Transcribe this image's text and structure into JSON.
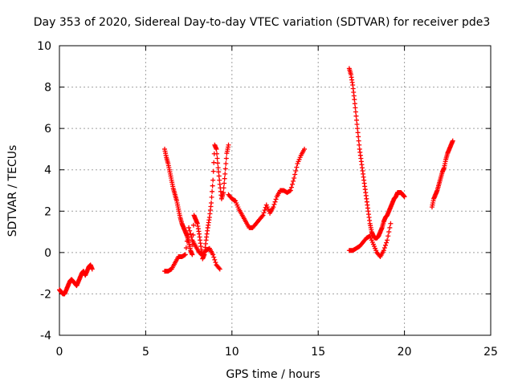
{
  "chart_data": {
    "type": "scatter",
    "title": "Day 353 of 2020, Sidereal Day-to-day VTEC variation (SDTVAR) for receiver pde3",
    "xlabel": "GPS time / hours",
    "ylabel": "SDTVAR / TECUs",
    "xlim": [
      0,
      25
    ],
    "ylim": [
      -4,
      10
    ],
    "xticks": [
      "0",
      "5",
      "10",
      "15",
      "20",
      "25"
    ],
    "yticks": [
      "-4",
      "-2",
      "0",
      "2",
      "4",
      "6",
      "8",
      "10"
    ],
    "grid": true,
    "marker": "plus",
    "color": "#ff0000",
    "series": [
      {
        "x": [
          0.0,
          0.1,
          0.2,
          0.3,
          0.4,
          0.5,
          0.6,
          0.7,
          0.8,
          0.9,
          1.0,
          1.1,
          1.2,
          1.3,
          1.4,
          1.5,
          1.6,
          1.7,
          1.8,
          1.9
        ],
        "y": [
          -1.8,
          -1.9,
          -2.0,
          -2.0,
          -1.8,
          -1.6,
          -1.4,
          -1.3,
          -1.4,
          -1.5,
          -1.6,
          -1.4,
          -1.2,
          -1.0,
          -0.9,
          -1.1,
          -0.9,
          -0.7,
          -0.6,
          -0.8
        ]
      },
      {
        "x": [
          6.1,
          6.2,
          6.3,
          6.4,
          6.5,
          6.6,
          6.7,
          6.8,
          6.9,
          7.0,
          7.1,
          7.2,
          7.3,
          7.4,
          7.5,
          7.6,
          7.7,
          7.8,
          7.9,
          8.0,
          8.1,
          8.2,
          8.3,
          8.4,
          8.5,
          8.6,
          8.7,
          8.8,
          8.9,
          9.0,
          9.1,
          9.2,
          9.3,
          9.4,
          9.5,
          9.6,
          9.7,
          9.8
        ],
        "y": [
          5.0,
          4.6,
          4.3,
          3.9,
          3.5,
          3.1,
          2.8,
          2.5,
          2.1,
          1.7,
          1.4,
          1.2,
          1.0,
          0.8,
          0.5,
          0.1,
          -0.1,
          1.8,
          1.6,
          1.4,
          0.9,
          0.3,
          -0.3,
          -0.1,
          0.6,
          1.2,
          1.7,
          2.4,
          3.5,
          5.2,
          5.0,
          4.1,
          3.3,
          2.6,
          2.9,
          3.8,
          4.8,
          5.2
        ]
      },
      {
        "x": [
          6.1,
          6.3,
          6.5,
          6.7,
          6.9,
          7.1,
          7.3,
          7.5,
          7.7,
          7.9,
          8.1,
          8.3,
          8.5,
          8.7,
          8.9,
          9.1,
          9.3
        ],
        "y": [
          -0.9,
          -0.9,
          -0.8,
          -0.5,
          -0.2,
          -0.2,
          -0.1,
          1.2,
          0.6,
          0.3,
          0.0,
          -0.1,
          0.1,
          0.2,
          -0.1,
          -0.6,
          -0.8
        ]
      },
      {
        "x": [
          9.8,
          10.0,
          10.2,
          10.4,
          10.6,
          10.8,
          11.0,
          11.2,
          11.4,
          11.6,
          11.8,
          12.0,
          12.2,
          12.4,
          12.6,
          12.8,
          13.0,
          13.2,
          13.4,
          13.6,
          13.8,
          14.0,
          14.2
        ],
        "y": [
          2.8,
          2.6,
          2.5,
          2.1,
          1.8,
          1.5,
          1.2,
          1.2,
          1.4,
          1.6,
          1.8,
          2.3,
          1.9,
          2.2,
          2.7,
          3.0,
          3.0,
          2.9,
          3.0,
          3.6,
          4.3,
          4.7,
          5.0
        ]
      },
      {
        "x": [
          16.8,
          16.9,
          17.0,
          17.1,
          17.2,
          17.3,
          17.4,
          17.5,
          17.6,
          17.7,
          17.8,
          17.9,
          18.0,
          18.1,
          18.2,
          18.3,
          18.4,
          18.5,
          18.6,
          18.7,
          18.8,
          18.9,
          19.0,
          19.1,
          19.2,
          19.3,
          19.4,
          19.5,
          19.6,
          19.7,
          19.8,
          19.9,
          20.0
        ],
        "y": [
          8.9,
          8.6,
          8.1,
          7.4,
          6.6,
          5.8,
          5.0,
          4.4,
          3.8,
          3.2,
          2.6,
          2.0,
          1.4,
          1.0,
          0.8,
          0.7,
          0.7,
          0.8,
          1.0,
          1.2,
          1.5,
          1.7,
          1.8,
          2.0,
          2.2,
          2.4,
          2.6,
          2.7,
          2.9,
          2.9,
          2.9,
          2.8,
          2.7
        ]
      },
      {
        "x": [
          16.8,
          17.0,
          17.2,
          17.4,
          17.6,
          17.8,
          18.0,
          18.2,
          18.4,
          18.6,
          18.8,
          19.0,
          19.2
        ],
        "y": [
          0.1,
          0.1,
          0.2,
          0.3,
          0.5,
          0.7,
          0.8,
          0.4,
          0.0,
          -0.2,
          0.1,
          0.6,
          1.4
        ]
      },
      {
        "x": [
          21.6,
          21.7,
          21.8,
          21.9,
          22.0,
          22.1,
          22.2,
          22.3,
          22.4,
          22.5,
          22.6,
          22.7,
          22.8
        ],
        "y": [
          2.2,
          2.6,
          2.8,
          3.0,
          3.3,
          3.6,
          3.9,
          4.1,
          4.5,
          4.8,
          5.0,
          5.2,
          5.4
        ]
      }
    ]
  }
}
